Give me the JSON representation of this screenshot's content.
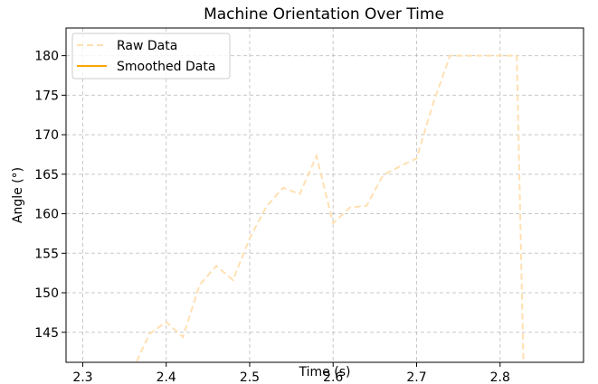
{
  "chart_data": {
    "type": "line",
    "title": "Machine Orientation Over Time",
    "xlabel": "Time (s)",
    "ylabel": "Angle (°)",
    "xlim": [
      2.28,
      2.9
    ],
    "ylim": [
      141.2,
      183.5
    ],
    "xticks": [
      2.3,
      2.4,
      2.5,
      2.6,
      2.7,
      2.8
    ],
    "xtick_labels": [
      "2.3",
      "2.4",
      "2.5",
      "2.6",
      "2.7",
      "2.8"
    ],
    "yticks": [
      145,
      150,
      155,
      160,
      165,
      170,
      175,
      180
    ],
    "ytick_labels": [
      "145",
      "150",
      "155",
      "160",
      "165",
      "170",
      "175",
      "180"
    ],
    "grid": true,
    "legend_position": "top-left",
    "series": [
      {
        "name": "Raw Data",
        "style": "dashed",
        "color": "#ffe0b2",
        "x": [
          2.34,
          2.36,
          2.38,
          2.4,
          2.42,
          2.44,
          2.46,
          2.48,
          2.5,
          2.52,
          2.54,
          2.56,
          2.58,
          2.6,
          2.62,
          2.64,
          2.66,
          2.68,
          2.7,
          2.72,
          2.74,
          2.76,
          2.78,
          2.8,
          2.82,
          2.828
        ],
        "y": [
          137.0,
          140.3,
          144.8,
          146.3,
          144.4,
          151.0,
          153.4,
          151.6,
          156.9,
          160.9,
          163.3,
          162.5,
          167.3,
          158.8,
          160.8,
          161.0,
          164.9,
          166.0,
          167.0,
          174.0,
          180.0,
          180.0,
          180.0,
          180.0,
          180.0,
          141.0
        ]
      },
      {
        "name": "Smoothed Data",
        "style": "solid",
        "color": "#ffa500",
        "x": [],
        "y": []
      }
    ]
  }
}
